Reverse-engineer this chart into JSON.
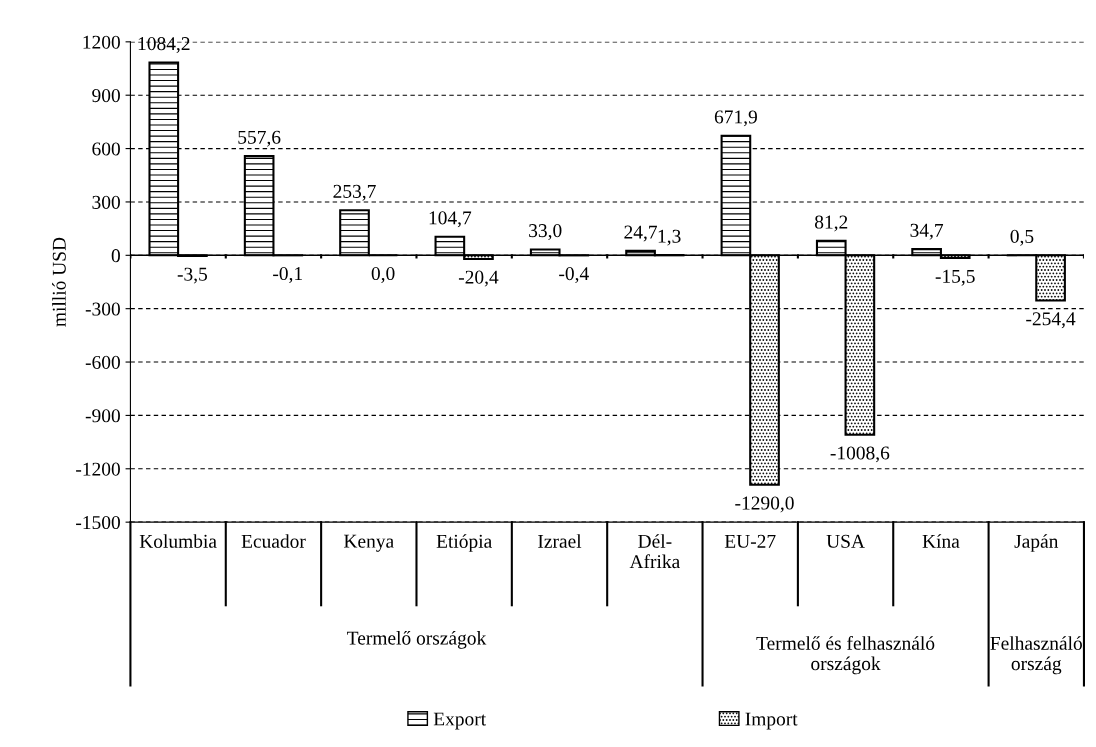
{
  "chart_data": {
    "type": "bar",
    "ylabel": "millió USD",
    "categories": [
      "Kolumbia",
      "Ecuador",
      "Kenya",
      "Etiópia",
      "Izrael",
      "Dél-Afrika",
      "EU-27",
      "USA",
      "Kína",
      "Japán"
    ],
    "series": [
      {
        "name": "Export",
        "color": "#000000",
        "values": [
          1084.2,
          557.6,
          253.7,
          104.7,
          33.0,
          24.7,
          671.9,
          81.2,
          34.7,
          0.5
        ],
        "value_labels": [
          "1084,2",
          "557,6",
          "253,7",
          "104,7",
          "33,0",
          "24,7",
          "671,9",
          "81,2",
          "34,7",
          "0,5"
        ]
      },
      {
        "name": "Import",
        "color": "#000000",
        "values": [
          -3.5,
          -0.1,
          0.0,
          -20.4,
          -0.4,
          1.3,
          -1290.0,
          -1008.6,
          -15.5,
          -254.4
        ],
        "value_labels": [
          "-3,5",
          "-0,1",
          "0,0",
          "-20,4",
          "-0,4",
          "1,3",
          "-1290,0",
          "-1008,6",
          "-15,5",
          "-254,4"
        ]
      }
    ],
    "annotations": [
      "Termelő országok",
      "Termelő és felhasználó országok",
      "Felhasználó ország"
    ],
    "ylim": [
      -1500,
      1200
    ],
    "yticks": [
      -1500,
      -1200,
      -900,
      -600,
      -300,
      0,
      300,
      600,
      900,
      1200
    ],
    "grid": "y",
    "legend": "bottom"
  }
}
